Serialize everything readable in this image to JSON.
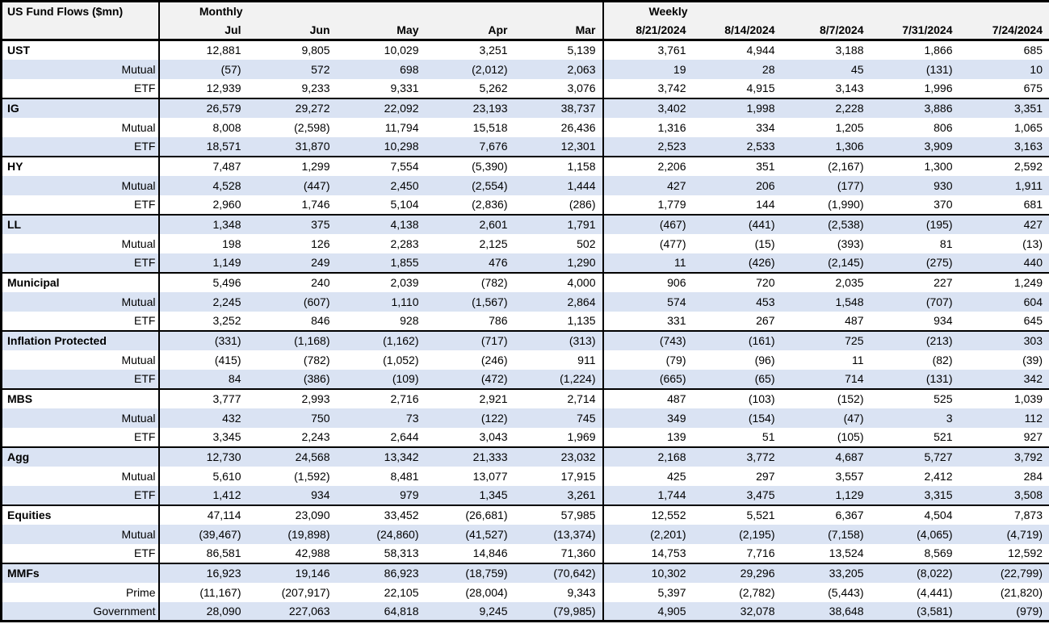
{
  "colors": {
    "row_shade": "#dae3f3",
    "header_bg": "#f2f2f2",
    "border": "#000000",
    "text": "#000000",
    "row_plain": "#ffffff"
  },
  "chart_data": {
    "type": "table",
    "title": "US Fund Flows ($mn)",
    "sections": [
      {
        "label": "Monthly",
        "columns": [
          "Jul",
          "Jun",
          "May",
          "Apr",
          "Mar"
        ]
      },
      {
        "label": "Weekly",
        "columns": [
          "8/21/2024",
          "8/14/2024",
          "8/7/2024",
          "7/31/2024",
          "7/24/2024"
        ]
      }
    ],
    "groups": [
      {
        "name": "UST",
        "rows": [
          {
            "label": "UST",
            "monthly": [
              "12,881",
              "9,805",
              "10,029",
              "3,251",
              "5,139"
            ],
            "weekly": [
              "3,761",
              "4,944",
              "3,188",
              "1,866",
              "685"
            ]
          },
          {
            "label": "Mutual",
            "monthly": [
              "(57)",
              "572",
              "698",
              "(2,012)",
              "2,063"
            ],
            "weekly": [
              "19",
              "28",
              "45",
              "(131)",
              "10"
            ]
          },
          {
            "label": "ETF",
            "monthly": [
              "12,939",
              "9,233",
              "9,331",
              "5,262",
              "3,076"
            ],
            "weekly": [
              "3,742",
              "4,915",
              "3,143",
              "1,996",
              "675"
            ]
          }
        ]
      },
      {
        "name": "IG",
        "rows": [
          {
            "label": "IG",
            "monthly": [
              "26,579",
              "29,272",
              "22,092",
              "23,193",
              "38,737"
            ],
            "weekly": [
              "3,402",
              "1,998",
              "2,228",
              "3,886",
              "3,351"
            ]
          },
          {
            "label": "Mutual",
            "monthly": [
              "8,008",
              "(2,598)",
              "11,794",
              "15,518",
              "26,436"
            ],
            "weekly": [
              "1,316",
              "334",
              "1,205",
              "806",
              "1,065"
            ]
          },
          {
            "label": "ETF",
            "monthly": [
              "18,571",
              "31,870",
              "10,298",
              "7,676",
              "12,301"
            ],
            "weekly": [
              "2,523",
              "2,533",
              "1,306",
              "3,909",
              "3,163"
            ]
          }
        ]
      },
      {
        "name": "HY",
        "rows": [
          {
            "label": "HY",
            "monthly": [
              "7,487",
              "1,299",
              "7,554",
              "(5,390)",
              "1,158"
            ],
            "weekly": [
              "2,206",
              "351",
              "(2,167)",
              "1,300",
              "2,592"
            ]
          },
          {
            "label": "Mutual",
            "monthly": [
              "4,528",
              "(447)",
              "2,450",
              "(2,554)",
              "1,444"
            ],
            "weekly": [
              "427",
              "206",
              "(177)",
              "930",
              "1,911"
            ]
          },
          {
            "label": "ETF",
            "monthly": [
              "2,960",
              "1,746",
              "5,104",
              "(2,836)",
              "(286)"
            ],
            "weekly": [
              "1,779",
              "144",
              "(1,990)",
              "370",
              "681"
            ]
          }
        ]
      },
      {
        "name": "LL",
        "rows": [
          {
            "label": "LL",
            "monthly": [
              "1,348",
              "375",
              "4,138",
              "2,601",
              "1,791"
            ],
            "weekly": [
              "(467)",
              "(441)",
              "(2,538)",
              "(195)",
              "427"
            ]
          },
          {
            "label": "Mutual",
            "monthly": [
              "198",
              "126",
              "2,283",
              "2,125",
              "502"
            ],
            "weekly": [
              "(477)",
              "(15)",
              "(393)",
              "81",
              "(13)"
            ]
          },
          {
            "label": "ETF",
            "monthly": [
              "1,149",
              "249",
              "1,855",
              "476",
              "1,290"
            ],
            "weekly": [
              "11",
              "(426)",
              "(2,145)",
              "(275)",
              "440"
            ]
          }
        ]
      },
      {
        "name": "Municipal",
        "rows": [
          {
            "label": "Municipal",
            "monthly": [
              "5,496",
              "240",
              "2,039",
              "(782)",
              "4,000"
            ],
            "weekly": [
              "906",
              "720",
              "2,035",
              "227",
              "1,249"
            ]
          },
          {
            "label": "Mutual",
            "monthly": [
              "2,245",
              "(607)",
              "1,110",
              "(1,567)",
              "2,864"
            ],
            "weekly": [
              "574",
              "453",
              "1,548",
              "(707)",
              "604"
            ]
          },
          {
            "label": "ETF",
            "monthly": [
              "3,252",
              "846",
              "928",
              "786",
              "1,135"
            ],
            "weekly": [
              "331",
              "267",
              "487",
              "934",
              "645"
            ]
          }
        ]
      },
      {
        "name": "Inflation Protected",
        "rows": [
          {
            "label": "Inflation Protected",
            "monthly": [
              "(331)",
              "(1,168)",
              "(1,162)",
              "(717)",
              "(313)"
            ],
            "weekly": [
              "(743)",
              "(161)",
              "725",
              "(213)",
              "303"
            ]
          },
          {
            "label": "Mutual",
            "monthly": [
              "(415)",
              "(782)",
              "(1,052)",
              "(246)",
              "911"
            ],
            "weekly": [
              "(79)",
              "(96)",
              "11",
              "(82)",
              "(39)"
            ]
          },
          {
            "label": "ETF",
            "monthly": [
              "84",
              "(386)",
              "(109)",
              "(472)",
              "(1,224)"
            ],
            "weekly": [
              "(665)",
              "(65)",
              "714",
              "(131)",
              "342"
            ]
          }
        ]
      },
      {
        "name": "MBS",
        "rows": [
          {
            "label": "MBS",
            "monthly": [
              "3,777",
              "2,993",
              "2,716",
              "2,921",
              "2,714"
            ],
            "weekly": [
              "487",
              "(103)",
              "(152)",
              "525",
              "1,039"
            ]
          },
          {
            "label": "Mutual",
            "monthly": [
              "432",
              "750",
              "73",
              "(122)",
              "745"
            ],
            "weekly": [
              "349",
              "(154)",
              "(47)",
              "3",
              "112"
            ]
          },
          {
            "label": "ETF",
            "monthly": [
              "3,345",
              "2,243",
              "2,644",
              "3,043",
              "1,969"
            ],
            "weekly": [
              "139",
              "51",
              "(105)",
              "521",
              "927"
            ]
          }
        ]
      },
      {
        "name": "Agg",
        "rows": [
          {
            "label": "Agg",
            "monthly": [
              "12,730",
              "24,568",
              "13,342",
              "21,333",
              "23,032"
            ],
            "weekly": [
              "2,168",
              "3,772",
              "4,687",
              "5,727",
              "3,792"
            ]
          },
          {
            "label": "Mutual",
            "monthly": [
              "5,610",
              "(1,592)",
              "8,481",
              "13,077",
              "17,915"
            ],
            "weekly": [
              "425",
              "297",
              "3,557",
              "2,412",
              "284"
            ]
          },
          {
            "label": "ETF",
            "monthly": [
              "1,412",
              "934",
              "979",
              "1,345",
              "3,261"
            ],
            "weekly": [
              "1,744",
              "3,475",
              "1,129",
              "3,315",
              "3,508"
            ]
          }
        ]
      },
      {
        "name": "Equities",
        "rows": [
          {
            "label": "Equities",
            "monthly": [
              "47,114",
              "23,090",
              "33,452",
              "(26,681)",
              "57,985"
            ],
            "weekly": [
              "12,552",
              "5,521",
              "6,367",
              "4,504",
              "7,873"
            ]
          },
          {
            "label": "Mutual",
            "monthly": [
              "(39,467)",
              "(19,898)",
              "(24,860)",
              "(41,527)",
              "(13,374)"
            ],
            "weekly": [
              "(2,201)",
              "(2,195)",
              "(7,158)",
              "(4,065)",
              "(4,719)"
            ]
          },
          {
            "label": "ETF",
            "monthly": [
              "86,581",
              "42,988",
              "58,313",
              "14,846",
              "71,360"
            ],
            "weekly": [
              "14,753",
              "7,716",
              "13,524",
              "8,569",
              "12,592"
            ]
          }
        ]
      },
      {
        "name": "MMFs",
        "rows": [
          {
            "label": "MMFs",
            "monthly": [
              "16,923",
              "19,146",
              "86,923",
              "(18,759)",
              "(70,642)"
            ],
            "weekly": [
              "10,302",
              "29,296",
              "33,205",
              "(8,022)",
              "(22,799)"
            ]
          },
          {
            "label": "Prime",
            "monthly": [
              "(11,167)",
              "(207,917)",
              "22,105",
              "(28,004)",
              "9,343"
            ],
            "weekly": [
              "5,397",
              "(2,782)",
              "(5,443)",
              "(4,441)",
              "(21,820)"
            ]
          },
          {
            "label": "Government",
            "monthly": [
              "28,090",
              "227,063",
              "64,818",
              "9,245",
              "(79,985)"
            ],
            "weekly": [
              "4,905",
              "32,078",
              "38,648",
              "(3,581)",
              "(979)"
            ]
          }
        ]
      }
    ]
  }
}
